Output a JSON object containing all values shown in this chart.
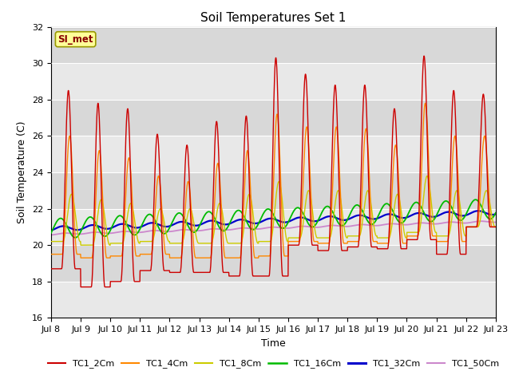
{
  "title": "Soil Temperatures Set 1",
  "xlabel": "Time",
  "ylabel": "Soil Temperature (C)",
  "ylim": [
    16,
    32
  ],
  "colors": {
    "TC1_2Cm": "#cc0000",
    "TC1_4Cm": "#ff8800",
    "TC1_8Cm": "#cccc00",
    "TC1_16Cm": "#00bb00",
    "TC1_32Cm": "#0000cc",
    "TC1_50Cm": "#cc88cc"
  },
  "legend_labels": [
    "TC1_2Cm",
    "TC1_4Cm",
    "TC1_8Cm",
    "TC1_16Cm",
    "TC1_32Cm",
    "TC1_50Cm"
  ],
  "si_met_label": "SI_met",
  "bg_color": "#e8e8e8",
  "title_fontsize": 11,
  "axis_label_fontsize": 9,
  "tick_fontsize": 8
}
